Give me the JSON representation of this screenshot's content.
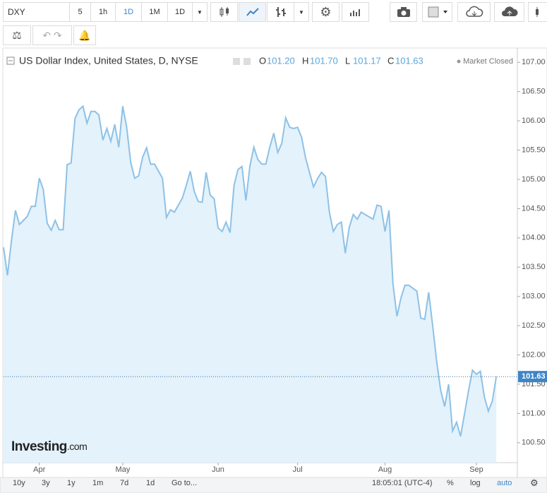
{
  "toolbar": {
    "symbol": "DXY",
    "intervals": [
      "5",
      "1h",
      "1D",
      "1M",
      "1D"
    ]
  },
  "header": {
    "title": "US Dollar Index, United States, D, NYSE",
    "ohlc": [
      {
        "key": "O",
        "value": "101.20"
      },
      {
        "key": "H",
        "value": "101.70"
      },
      {
        "key": "L",
        "value": "101.17"
      },
      {
        "key": "C",
        "value": "101.63"
      }
    ],
    "status": "Market Closed"
  },
  "watermark": {
    "brand": "Investing",
    "suffix": ".com"
  },
  "footer": {
    "ranges": [
      "10y",
      "3y",
      "1y",
      "1m",
      "7d",
      "1d"
    ],
    "goto": "Go to...",
    "time": "18:05:01 (UTC-4)",
    "options": [
      "%",
      "log",
      "auto"
    ]
  },
  "chart_data": {
    "type": "area",
    "color": "#8ec1e6",
    "fill": "#e3f2fb",
    "x": [
      0,
      1,
      2,
      3,
      4,
      5,
      6,
      7,
      8,
      9,
      10,
      11,
      12,
      13,
      14,
      15,
      16,
      17,
      18,
      19,
      20,
      21,
      22,
      23,
      24,
      25,
      26,
      27,
      28,
      29,
      30,
      31,
      32,
      33,
      34,
      35,
      36,
      37,
      38,
      39,
      40,
      41,
      42,
      43,
      44,
      45,
      46,
      47,
      48,
      49,
      50,
      51,
      52,
      53,
      54,
      55,
      56,
      57,
      58,
      59,
      60,
      61,
      62,
      63,
      64,
      65,
      66,
      67,
      68,
      69,
      70,
      71,
      72,
      73,
      74,
      75,
      76,
      77,
      78,
      79,
      80,
      81,
      82,
      83,
      84,
      85,
      86,
      87,
      88,
      89,
      90,
      91,
      92,
      93,
      94,
      95,
      96,
      97,
      98,
      99,
      100,
      101,
      102,
      103,
      104,
      105,
      106,
      107,
      108,
      109,
      110,
      111,
      112,
      113,
      114,
      115,
      116,
      117,
      118,
      119,
      120,
      121,
      122,
      123,
      124
    ],
    "values": [
      103.84,
      103.36,
      103.96,
      104.47,
      104.23,
      104.3,
      104.37,
      104.54,
      104.54,
      105.02,
      104.83,
      104.25,
      104.13,
      104.3,
      104.14,
      104.14,
      105.25,
      105.28,
      106.04,
      106.19,
      106.25,
      105.96,
      106.16,
      106.16,
      106.1,
      105.67,
      105.87,
      105.65,
      105.94,
      105.55,
      106.25,
      105.89,
      105.29,
      105.02,
      105.06,
      105.38,
      105.54,
      105.26,
      105.26,
      105.14,
      105.02,
      104.35,
      104.48,
      104.44,
      104.56,
      104.68,
      104.9,
      105.14,
      104.79,
      104.62,
      104.61,
      105.12,
      104.73,
      104.67,
      104.17,
      104.11,
      104.27,
      104.09,
      104.9,
      105.17,
      105.22,
      104.64,
      105.23,
      105.55,
      105.34,
      105.26,
      105.26,
      105.55,
      105.79,
      105.46,
      105.61,
      106.05,
      105.89,
      105.87,
      105.89,
      105.72,
      105.37,
      105.12,
      104.87,
      105.01,
      105.12,
      105.05,
      104.44,
      104.11,
      104.23,
      104.27,
      103.74,
      104.18,
      104.4,
      104.32,
      104.44,
      104.4,
      104.36,
      104.32,
      104.56,
      104.54,
      104.11,
      104.47,
      103.21,
      102.66,
      102.97,
      103.19,
      103.19,
      103.14,
      103.09,
      102.63,
      102.61,
      103.07,
      102.49,
      101.89,
      101.4,
      101.12,
      101.5,
      100.7,
      100.85,
      100.61,
      100.99,
      101.38,
      101.74,
      101.67,
      101.72,
      101.28,
      101.04,
      101.21,
      101.63
    ],
    "xlim": [
      0,
      129.3
    ],
    "xticks": [
      {
        "value": 9,
        "label": "Apr"
      },
      {
        "value": 30,
        "label": "May"
      },
      {
        "value": 54,
        "label": "Jun"
      },
      {
        "value": 74,
        "label": "Jul"
      },
      {
        "value": 96,
        "label": "Aug"
      },
      {
        "value": 119,
        "label": "Sep"
      }
    ],
    "ylim": [
      100.16,
      107.22
    ],
    "yticks": [
      {
        "value": 100.5,
        "label": "100.50"
      },
      {
        "value": 101,
        "label": "101.00"
      },
      {
        "value": 101.5,
        "label": "101.50"
      },
      {
        "value": 102,
        "label": "102.00"
      },
      {
        "value": 102.5,
        "label": "102.50"
      },
      {
        "value": 103,
        "label": "103.00"
      },
      {
        "value": 103.5,
        "label": "103.50"
      },
      {
        "value": 104,
        "label": "104.00"
      },
      {
        "value": 104.5,
        "label": "104.50"
      },
      {
        "value": 105,
        "label": "105.00"
      },
      {
        "value": 105.5,
        "label": "105.50"
      },
      {
        "value": 106,
        "label": "106.00"
      },
      {
        "value": 106.5,
        "label": "106.50"
      },
      {
        "value": 107,
        "label": "107.00"
      }
    ],
    "last_price": {
      "value": 101.63,
      "label": "101.63"
    }
  }
}
